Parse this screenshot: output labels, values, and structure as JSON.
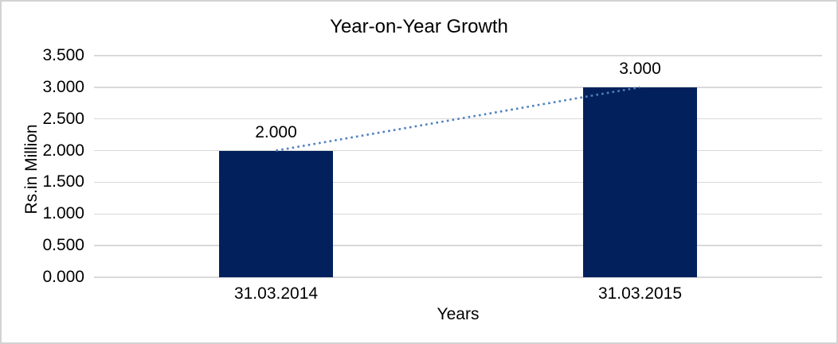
{
  "chart_data": {
    "type": "bar",
    "title": "Year-on-Year Growth",
    "xlabel": "Years",
    "ylabel": "Rs.in Million",
    "categories": [
      "31.03.2014",
      "31.03.2015"
    ],
    "values": [
      2.0,
      3.0
    ],
    "value_labels": [
      "2.000",
      "3.000"
    ],
    "ylim": [
      0,
      3.5
    ],
    "ytick_step": 0.5,
    "ytick_labels": [
      "0.000",
      "0.500",
      "1.000",
      "1.500",
      "2.000",
      "2.500",
      "3.000",
      "3.500"
    ],
    "grid": true,
    "legend": "none",
    "trendline": {
      "type": "linear",
      "style": "dotted",
      "color": "#4f81bd"
    },
    "colors": {
      "bar": "#02215c",
      "gridline": "#d9d9d9",
      "text": "#000000",
      "frame_border": "#d2d2d2"
    }
  }
}
